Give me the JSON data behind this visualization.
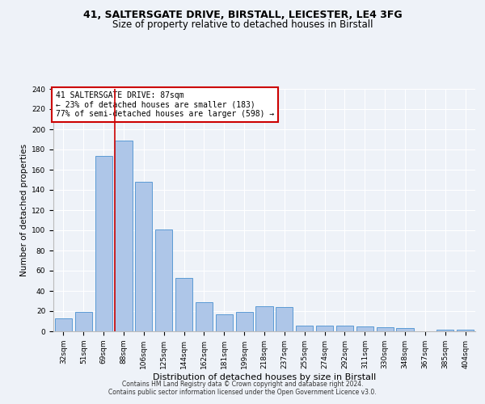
{
  "title1": "41, SALTERSGATE DRIVE, BIRSTALL, LEICESTER, LE4 3FG",
  "title2": "Size of property relative to detached houses in Birstall",
  "xlabel": "Distribution of detached houses by size in Birstall",
  "ylabel": "Number of detached properties",
  "categories": [
    "32sqm",
    "51sqm",
    "69sqm",
    "88sqm",
    "106sqm",
    "125sqm",
    "144sqm",
    "162sqm",
    "181sqm",
    "199sqm",
    "218sqm",
    "237sqm",
    "255sqm",
    "274sqm",
    "292sqm",
    "311sqm",
    "330sqm",
    "348sqm",
    "367sqm",
    "385sqm",
    "404sqm"
  ],
  "values": [
    13,
    19,
    174,
    189,
    148,
    101,
    53,
    29,
    17,
    19,
    25,
    24,
    6,
    6,
    6,
    5,
    4,
    3,
    0,
    2,
    2
  ],
  "bar_color": "#aec6e8",
  "bar_edge_color": "#5b9bd5",
  "property_line_x": 2.57,
  "annotation_line1": "41 SALTERSGATE DRIVE: 87sqm",
  "annotation_line2": "← 23% of detached houses are smaller (183)",
  "annotation_line3": "77% of semi-detached houses are larger (598) →",
  "annotation_box_color": "#ffffff",
  "annotation_box_edge": "#cc0000",
  "vline_color": "#cc0000",
  "ylim": [
    0,
    240
  ],
  "yticks": [
    0,
    20,
    40,
    60,
    80,
    100,
    120,
    140,
    160,
    180,
    200,
    220,
    240
  ],
  "footer1": "Contains HM Land Registry data © Crown copyright and database right 2024.",
  "footer2": "Contains public sector information licensed under the Open Government Licence v3.0.",
  "bg_color": "#eef2f8",
  "grid_color": "#ffffff",
  "title1_fontsize": 9,
  "title2_fontsize": 8.5,
  "xlabel_fontsize": 8,
  "ylabel_fontsize": 7.5,
  "tick_fontsize": 6.5,
  "footer_fontsize": 5.5,
  "ann_fontsize": 7
}
